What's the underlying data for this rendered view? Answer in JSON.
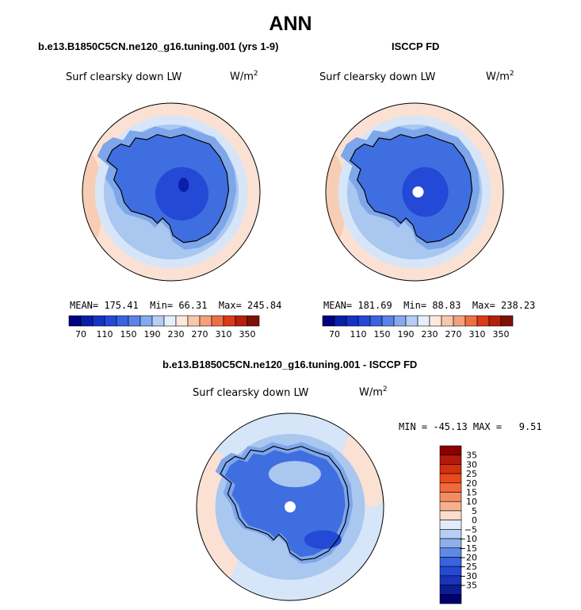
{
  "title": "ANN",
  "colors": {
    "ocean_warm": "#fbe1d3",
    "ocean_warm2": "#f7cdb6",
    "light_blue": "#d6e6f8",
    "mid_blue": "#aac7f0",
    "blue": "#7ea6ea",
    "deep_blue": "#3f6ee0",
    "darker_blue": "#2449d6",
    "navy": "#0a1fa8",
    "coast": "#000000",
    "pole": "#ffffff"
  },
  "chart_data": [
    {
      "type": "heatmap",
      "panel": "model",
      "title": "b.e13.B1850C5CN.ne120_g16.tuning.001 (yrs 1-9)",
      "variable": "Surf clearsky down LW",
      "units": "W/m",
      "units_exp": "2",
      "stats": {
        "mean_label": "MEAN=",
        "mean": "175.41",
        "min_label": "Min=",
        "min": "66.31",
        "max_label": "Max=",
        "max": "245.84"
      },
      "colorbar": {
        "levels": [
          70,
          90,
          110,
          130,
          150,
          170,
          190,
          210,
          230,
          250,
          270,
          290,
          310,
          330,
          350
        ],
        "tick_labels": [
          "70",
          "110",
          "150",
          "190",
          "230",
          "270",
          "310",
          "350"
        ],
        "colors": [
          "#000080",
          "#0a1fa8",
          "#1633c6",
          "#2449d6",
          "#3a63e0",
          "#5a82e8",
          "#86a8ef",
          "#b6cdf5",
          "#e6eefb",
          "#fde9dc",
          "#f8c8ad",
          "#f4a07c",
          "#ee6f45",
          "#dd3a1a",
          "#b5210c",
          "#7d1205"
        ]
      }
    },
    {
      "type": "heatmap",
      "panel": "obs",
      "title": "ISCCP FD",
      "variable": "Surf clearsky down LW",
      "units": "W/m",
      "units_exp": "2",
      "stats": {
        "mean_label": "MEAN=",
        "mean": "181.69",
        "min_label": "Min=",
        "min": "88.83",
        "max_label": "Max=",
        "max": "238.23"
      },
      "colorbar": {
        "levels": [
          70,
          90,
          110,
          130,
          150,
          170,
          190,
          210,
          230,
          250,
          270,
          290,
          310,
          330,
          350
        ],
        "tick_labels": [
          "70",
          "110",
          "150",
          "190",
          "230",
          "270",
          "310",
          "350"
        ],
        "colors": [
          "#000080",
          "#0a1fa8",
          "#1633c6",
          "#2449d6",
          "#3a63e0",
          "#5a82e8",
          "#86a8ef",
          "#b6cdf5",
          "#e6eefb",
          "#fde9dc",
          "#f8c8ad",
          "#f4a07c",
          "#ee6f45",
          "#dd3a1a",
          "#b5210c",
          "#7d1205"
        ]
      }
    },
    {
      "type": "heatmap",
      "panel": "diff",
      "title": "b.e13.B1850C5CN.ne120_g16.tuning.001 - ISCCP FD",
      "variable": "Surf clearsky down LW",
      "units": "W/m",
      "units_exp": "2",
      "stats_text": "MIN = -45.13 MAX =   9.51",
      "stats": {
        "min": "-45.13",
        "max": "9.51"
      },
      "colorbar": {
        "levels": [
          -35,
          -30,
          -25,
          -20,
          -15,
          -10,
          -5,
          0,
          5,
          10,
          15,
          20,
          25,
          30,
          35
        ],
        "tick_labels": [
          "35",
          "30",
          "25",
          "20",
          "15",
          "10",
          "5",
          "0",
          "−5",
          "−10",
          "−15",
          "−20",
          "−25",
          "−30",
          "−35"
        ],
        "colors": [
          "#8b0000",
          "#b3190b",
          "#d2300f",
          "#e84a1c",
          "#f06a3c",
          "#f48c62",
          "#f7b08e",
          "#fcdccb",
          "#e2ecf9",
          "#b7cff3",
          "#8dafec",
          "#5f89e6",
          "#3a63e0",
          "#2449d6",
          "#1a33b8",
          "#0d1d96",
          "#000070"
        ]
      }
    }
  ]
}
